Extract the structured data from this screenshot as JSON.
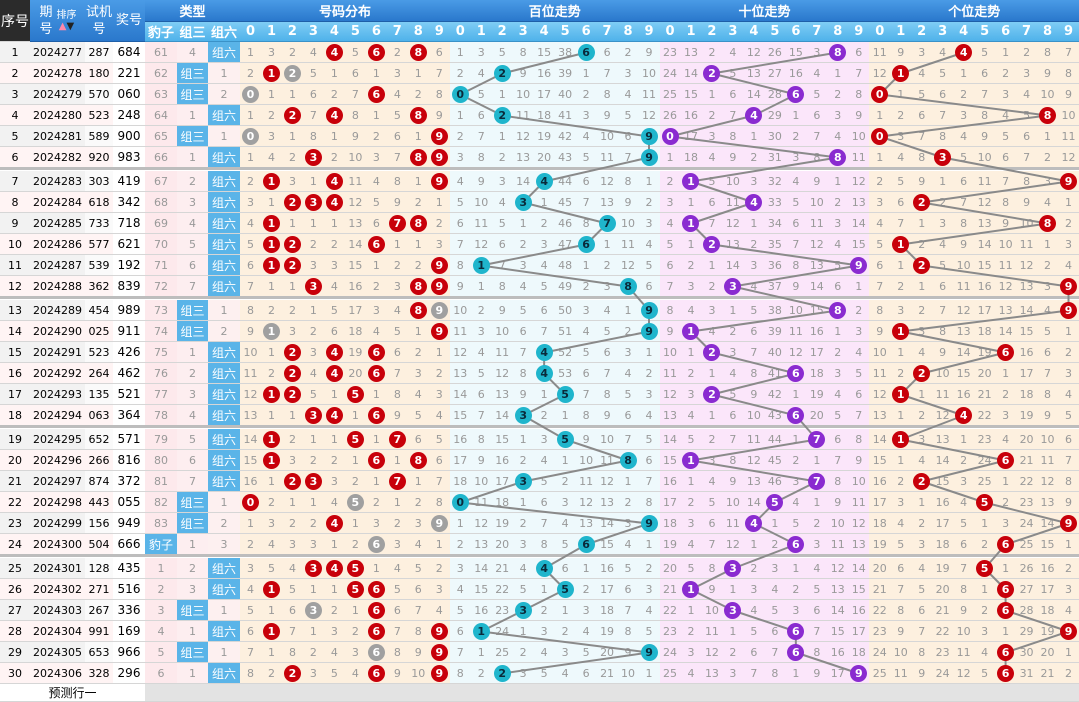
{
  "header": {
    "seq": "序号",
    "issue": "期号",
    "sort": "排序",
    "test": "试机号",
    "prize": "奖号",
    "type": "类型",
    "type_cols": [
      "豹子",
      "组三",
      "组六"
    ],
    "dist": "号码分布",
    "hundreds": "百位走势",
    "tens": "十位走势",
    "units": "个位走势",
    "digits": [
      "0",
      "1",
      "2",
      "3",
      "4",
      "5",
      "6",
      "7",
      "8",
      "9"
    ]
  },
  "colors": {
    "dist_ball": "#c8000a",
    "dup_ball": "#a0a0a0",
    "hundreds_ball": "#1fb5cc",
    "tens_ball": "#8a2bd0",
    "units_ball": "#c8000a",
    "dist_bg": "#fdf0df",
    "hundreds_bg": "#eef9fc",
    "tens_bg": "#fbe6fa",
    "units_bg": "#fdf0df",
    "line": "#8a8a8a"
  },
  "initial_omission": {
    "type": [
      61,
      4,
      0
    ],
    "dist": [
      1,
      3,
      2,
      4,
      0,
      5,
      0,
      2,
      0,
      6
    ],
    "hundreds": [
      1,
      3,
      5,
      8,
      15,
      38,
      0,
      6,
      2,
      9
    ],
    "tens": [
      23,
      13,
      2,
      4,
      12,
      26,
      15,
      3,
      0,
      6
    ],
    "units": [
      11,
      9,
      3,
      4,
      0,
      5,
      1,
      2,
      8,
      7
    ]
  },
  "rows": [
    {
      "seq": "1",
      "issue": "2024277",
      "test": "287",
      "prize": "684"
    },
    {
      "seq": "2",
      "issue": "2024278",
      "test": "180",
      "prize": "221"
    },
    {
      "seq": "3",
      "issue": "2024279",
      "test": "570",
      "prize": "060"
    },
    {
      "seq": "4",
      "issue": "2024280",
      "test": "523",
      "prize": "248"
    },
    {
      "seq": "5",
      "issue": "2024281",
      "test": "589",
      "prize": "900"
    },
    {
      "seq": "6",
      "issue": "2024282",
      "test": "920",
      "prize": "983"
    },
    {
      "seq": "7",
      "issue": "2024283",
      "test": "303",
      "prize": "419"
    },
    {
      "seq": "8",
      "issue": "2024284",
      "test": "618",
      "prize": "342"
    },
    {
      "seq": "9",
      "issue": "2024285",
      "test": "733",
      "prize": "718"
    },
    {
      "seq": "10",
      "issue": "2024286",
      "test": "577",
      "prize": "621"
    },
    {
      "seq": "11",
      "issue": "2024287",
      "test": "539",
      "prize": "192"
    },
    {
      "seq": "12",
      "issue": "2024288",
      "test": "362",
      "prize": "839"
    },
    {
      "seq": "13",
      "issue": "2024289",
      "test": "454",
      "prize": "989"
    },
    {
      "seq": "14",
      "issue": "2024290",
      "test": "025",
      "prize": "911"
    },
    {
      "seq": "15",
      "issue": "2024291",
      "test": "523",
      "prize": "426"
    },
    {
      "seq": "16",
      "issue": "2024292",
      "test": "264",
      "prize": "462"
    },
    {
      "seq": "17",
      "issue": "2024293",
      "test": "135",
      "prize": "521"
    },
    {
      "seq": "18",
      "issue": "2024294",
      "test": "063",
      "prize": "364"
    },
    {
      "seq": "19",
      "issue": "2024295",
      "test": "652",
      "prize": "571"
    },
    {
      "seq": "20",
      "issue": "2024296",
      "test": "266",
      "prize": "816"
    },
    {
      "seq": "21",
      "issue": "2024297",
      "test": "874",
      "prize": "372"
    },
    {
      "seq": "22",
      "issue": "2024298",
      "test": "443",
      "prize": "055"
    },
    {
      "seq": "23",
      "issue": "2024299",
      "test": "156",
      "prize": "949"
    },
    {
      "seq": "24",
      "issue": "2024300",
      "test": "504",
      "prize": "666"
    },
    {
      "seq": "25",
      "issue": "2024301",
      "test": "128",
      "prize": "435"
    },
    {
      "seq": "26",
      "issue": "2024302",
      "test": "271",
      "prize": "516"
    },
    {
      "seq": "27",
      "issue": "2024303",
      "test": "267",
      "prize": "336"
    },
    {
      "seq": "28",
      "issue": "2024304",
      "test": "991",
      "prize": "169"
    },
    {
      "seq": "29",
      "issue": "2024305",
      "test": "653",
      "prize": "966"
    },
    {
      "seq": "30",
      "issue": "2024306",
      "test": "328",
      "prize": "296"
    }
  ],
  "footer": {
    "predict_label": "预测行一"
  }
}
